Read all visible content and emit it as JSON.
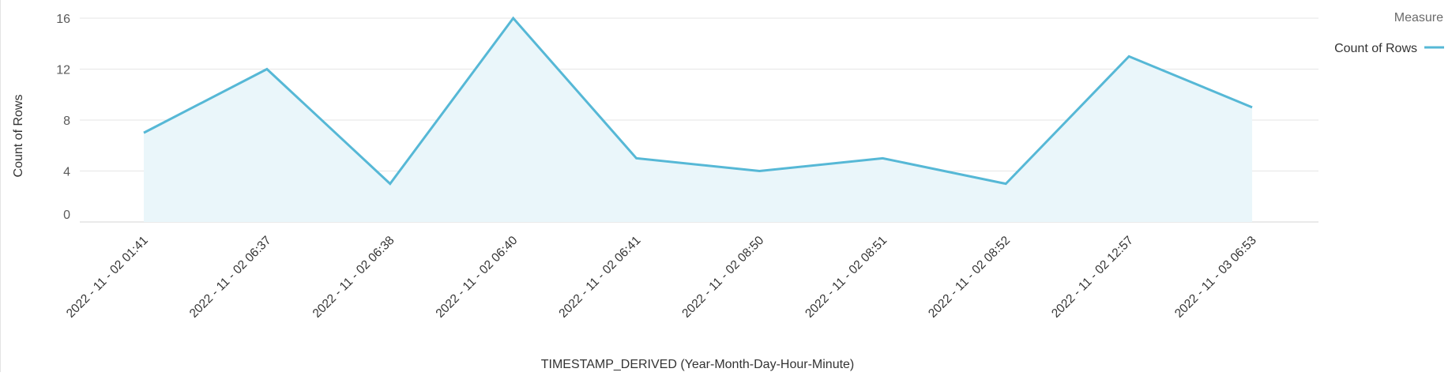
{
  "chart_data": {
    "type": "area",
    "title": "",
    "xlabel": "TIMESTAMP_DERIVED (Year-Month-Day-Hour-Minute)",
    "ylabel": "Count of Rows",
    "categories": [
      "2022 - 11 - 02 01:41",
      "2022 - 11 - 02 06:37",
      "2022 - 11 - 02 06:38",
      "2022 - 11 - 02 06:40",
      "2022 - 11 - 02 06:41",
      "2022 - 11 - 02 08:50",
      "2022 - 11 - 02 08:51",
      "2022 - 11 - 02 08:52",
      "2022 - 11 - 02 12:57",
      "2022 - 11 - 03 06:53"
    ],
    "series": [
      {
        "name": "Count of Rows",
        "values": [
          7,
          12,
          3,
          16,
          5,
          4,
          5,
          3,
          13,
          9
        ]
      }
    ],
    "ylim": [
      0,
      16
    ],
    "yticks": [
      0,
      4,
      8,
      12,
      16
    ],
    "grid": true,
    "legend": {
      "title": "Measure",
      "position": "top-right",
      "entries": [
        "Count of Rows"
      ]
    },
    "colors": {
      "line": "#56b8d6",
      "fill": "#eaf6fa",
      "grid": "#e6e6e6",
      "axis": "#d6d6d6"
    }
  }
}
